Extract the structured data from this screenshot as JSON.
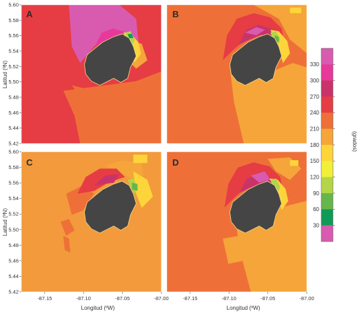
{
  "chart_data": {
    "type": "heatmap",
    "xlabel": "Longitud (ºW)",
    "ylabel": "Latitud (ºN)",
    "xlim": [
      -87.18,
      -87.0
    ],
    "ylim": [
      5.42,
      5.6
    ],
    "x_ticks": [
      "-87.15",
      "-87.10",
      "-87.05",
      "-87.00"
    ],
    "y_ticks": [
      "5.60",
      "5.58",
      "5.56",
      "5.54",
      "5.52",
      "5.50",
      "5.48",
      "5.46",
      "5.44",
      "5.42"
    ],
    "panels": [
      {
        "label": "A",
        "background_direction": 240
      },
      {
        "label": "B",
        "background_direction": 210
      },
      {
        "label": "C",
        "background_direction": 195
      },
      {
        "label": "D",
        "background_direction": 210
      }
    ],
    "colorbar": {
      "label": "(grados)",
      "ticks": [
        "330",
        "300",
        "270",
        "240",
        "210",
        "180",
        "150",
        "120",
        "90",
        "60",
        "30"
      ],
      "colors": [
        "#d85bb0",
        "#e8389a",
        "#c9336a",
        "#e63c44",
        "#ee7038",
        "#f5a53a",
        "#fdd53a",
        "#f2ef38",
        "#b3d548",
        "#66b64c",
        "#109a58",
        "#d85bb0"
      ]
    },
    "colors": {
      "island": "#454545",
      "c30": "#109a58",
      "c60": "#66b64c",
      "c90": "#b3d548",
      "c120": "#f2ef38",
      "c150": "#fdd53a",
      "c180": "#f5a53a",
      "c195": "#f29a3c",
      "c210": "#ee7038",
      "c240": "#e63c44",
      "c270": "#c9336a",
      "c300": "#e8389a",
      "c330": "#d85bb0"
    }
  }
}
